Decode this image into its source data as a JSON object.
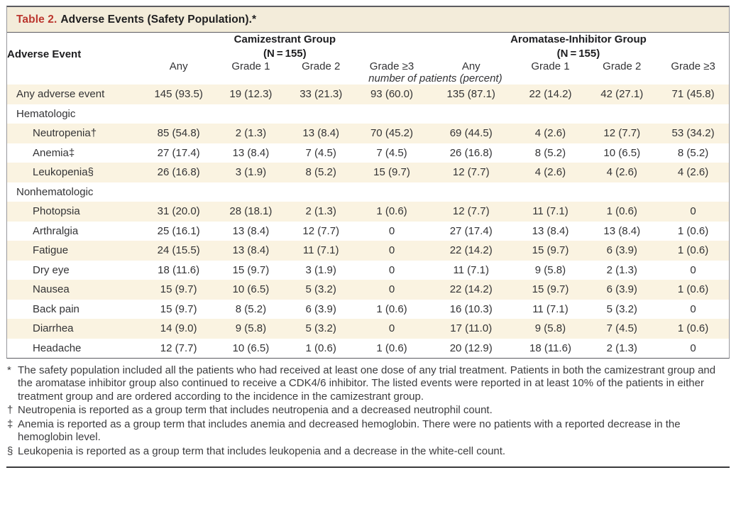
{
  "title": {
    "label": "Table 2.",
    "text": "Adverse Events (Safety Population).*"
  },
  "col_header": "Adverse Event",
  "groups": [
    {
      "name": "Camizestrant Group",
      "n": "(N = 155)"
    },
    {
      "name": "Aromatase-Inhibitor Group",
      "n": "(N = 155)"
    }
  ],
  "grade_headers": [
    "Any",
    "Grade 1",
    "Grade 2",
    "Grade ≥3"
  ],
  "units_note": "number of patients (percent)",
  "rows": [
    {
      "label": "Any adverse event",
      "indent": false,
      "section": false,
      "values": [
        "145 (93.5)",
        "19 (12.3)",
        "33 (21.3)",
        "93 (60.0)",
        "135 (87.1)",
        "22 (14.2)",
        "42 (27.1)",
        "71 (45.8)"
      ]
    },
    {
      "label": "Hematologic",
      "indent": false,
      "section": true,
      "values": []
    },
    {
      "label": "Neutropenia†",
      "indent": true,
      "section": false,
      "values": [
        "85 (54.8)",
        "2 (1.3)",
        "13 (8.4)",
        "70 (45.2)",
        "69 (44.5)",
        "4 (2.6)",
        "12 (7.7)",
        "53 (34.2)"
      ]
    },
    {
      "label": "Anemia‡",
      "indent": true,
      "section": false,
      "values": [
        "27 (17.4)",
        "13 (8.4)",
        "7 (4.5)",
        "7 (4.5)",
        "26 (16.8)",
        "8 (5.2)",
        "10 (6.5)",
        "8 (5.2)"
      ]
    },
    {
      "label": "Leukopenia§",
      "indent": true,
      "section": false,
      "values": [
        "26 (16.8)",
        "3 (1.9)",
        "8 (5.2)",
        "15 (9.7)",
        "12 (7.7)",
        "4 (2.6)",
        "4 (2.6)",
        "4 (2.6)"
      ]
    },
    {
      "label": "Nonhematologic",
      "indent": false,
      "section": true,
      "values": []
    },
    {
      "label": "Photopsia",
      "indent": true,
      "section": false,
      "values": [
        "31 (20.0)",
        "28 (18.1)",
        "2 (1.3)",
        "1 (0.6)",
        "12 (7.7)",
        "11 (7.1)",
        "1 (0.6)",
        "0"
      ]
    },
    {
      "label": "Arthralgia",
      "indent": true,
      "section": false,
      "values": [
        "25 (16.1)",
        "13 (8.4)",
        "12 (7.7)",
        "0",
        "27 (17.4)",
        "13 (8.4)",
        "13 (8.4)",
        "1 (0.6)"
      ]
    },
    {
      "label": "Fatigue",
      "indent": true,
      "section": false,
      "values": [
        "24 (15.5)",
        "13 (8.4)",
        "11 (7.1)",
        "0",
        "22 (14.2)",
        "15 (9.7)",
        "6 (3.9)",
        "1 (0.6)"
      ]
    },
    {
      "label": "Dry eye",
      "indent": true,
      "section": false,
      "values": [
        "18 (11.6)",
        "15 (9.7)",
        "3 (1.9)",
        "0",
        "11 (7.1)",
        "9 (5.8)",
        "2 (1.3)",
        "0"
      ]
    },
    {
      "label": "Nausea",
      "indent": true,
      "section": false,
      "values": [
        "15 (9.7)",
        "10 (6.5)",
        "5 (3.2)",
        "0",
        "22 (14.2)",
        "15 (9.7)",
        "6 (3.9)",
        "1 (0.6)"
      ]
    },
    {
      "label": "Back pain",
      "indent": true,
      "section": false,
      "values": [
        "15 (9.7)",
        "8 (5.2)",
        "6 (3.9)",
        "1 (0.6)",
        "16 (10.3)",
        "11 (7.1)",
        "5 (3.2)",
        "0"
      ]
    },
    {
      "label": "Diarrhea",
      "indent": true,
      "section": false,
      "values": [
        "14 (9.0)",
        "9 (5.8)",
        "5 (3.2)",
        "0",
        "17 (11.0)",
        "9 (5.8)",
        "7 (4.5)",
        "1 (0.6)"
      ]
    },
    {
      "label": "Headache",
      "indent": true,
      "section": false,
      "values": [
        "12 (7.7)",
        "10 (6.5)",
        "1 (0.6)",
        "1 (0.6)",
        "20 (12.9)",
        "18 (11.6)",
        "2 (1.3)",
        "0"
      ]
    }
  ],
  "footnotes": [
    {
      "symbol": "*",
      "text": "The safety population included all the patients who had received at least one dose of any trial treatment. Patients in both the camizestrant group and the aromatase inhibitor group also continued to receive a CDK4/6 inhibitor. The listed events were reported in at least 10% of the patients in either treatment group and are ordered according to the incidence in the camizestrant group."
    },
    {
      "symbol": "†",
      "text": "Neutropenia is reported as a group term that includes neutropenia and a decreased neutrophil count."
    },
    {
      "symbol": "‡",
      "text": "Anemia is reported as a group term that includes anemia and decreased hemoglobin. There were no patients with a reported decrease in the hemoglobin level."
    },
    {
      "symbol": "§",
      "text": "Leukopenia is reported as a group term that includes leukopenia and a decrease in the white-cell count."
    }
  ],
  "colors": {
    "title_bar_bg": "#f3ecda",
    "stripe_bg": "#faf3e1",
    "table_number_red": "#bb372f",
    "rule_dark": "#5c5c60",
    "border_gray": "#97979b",
    "text_dark": "#1e1e20"
  }
}
